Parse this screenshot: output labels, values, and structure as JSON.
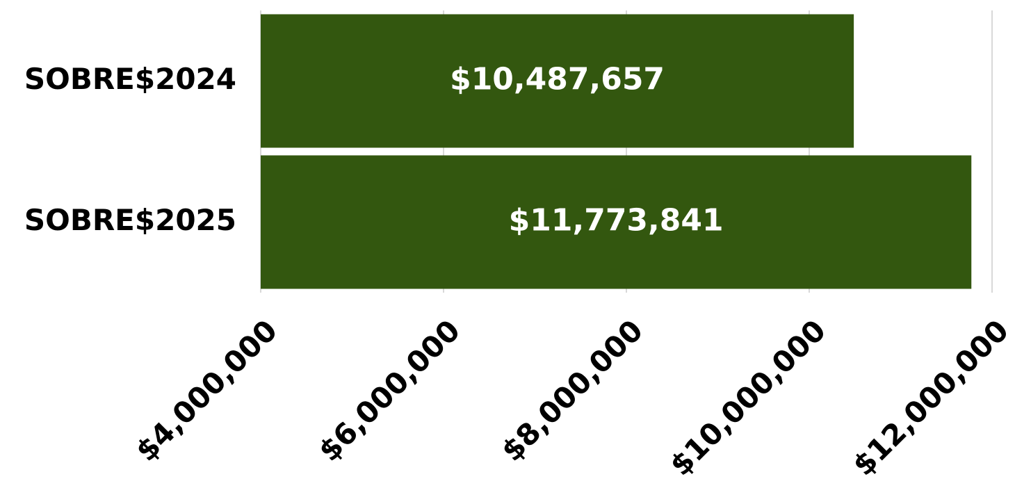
{
  "chart_data": {
    "type": "hbar",
    "categories": [
      "SOBRE$2024",
      "SOBRE$2025"
    ],
    "values": [
      10487657,
      11773841
    ],
    "value_labels": [
      "$10,487,657",
      "$11,773,841"
    ],
    "color": "#33570f",
    "xlim": [
      4000000,
      12000000
    ],
    "xticks": [
      {
        "value": 4000000,
        "label": "$4,000,000"
      },
      {
        "value": 6000000,
        "label": "$6,000,000"
      },
      {
        "value": 8000000,
        "label": "$8,000,000"
      },
      {
        "value": 10000000,
        "label": "$10,000,000"
      },
      {
        "value": 12000000,
        "label": "$12,000,000"
      }
    ],
    "grid": true
  }
}
